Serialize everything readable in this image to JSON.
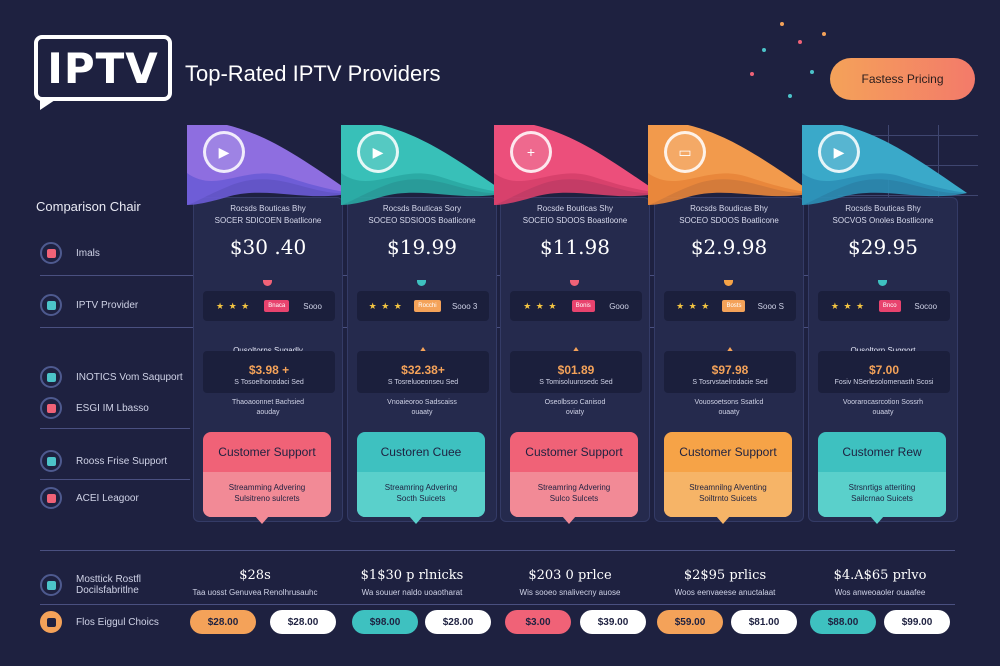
{
  "header": {
    "logo_text": "IPTV",
    "title": "Top-Rated IPTV Providers",
    "pill": "Fastess Pricing"
  },
  "side": {
    "title": "Comparison Chair",
    "rows": [
      {
        "label": "Imals",
        "icon": "tv-icon",
        "color": "#f06277"
      },
      {
        "label": "IPTV Provider",
        "icon": "monitor-icon",
        "color": "#4cc3c9"
      },
      {
        "label": "INOTICS Vom Saquport",
        "icon": "list-icon",
        "color": "#4cc3c9"
      },
      {
        "label": "ESGI IM Lbasso",
        "icon": "grid-icon",
        "color": "#f06277"
      },
      {
        "label": "Rooss Frise Support",
        "icon": "chat-icon",
        "color": "#4cc3c9"
      },
      {
        "label": "ACEI Leagoor",
        "icon": "user-icon",
        "color": "#f06277"
      },
      {
        "label": "Mosttick Rostfl Docilsfabritlne",
        "icon": "chart-icon",
        "color": "#4cc3c9"
      },
      {
        "label": "Flos Eiggul Choics",
        "icon": "badge-icon",
        "color": "#f4a259"
      }
    ]
  },
  "providers": [
    {
      "color": "#8e6ee0",
      "color2": "#6a5bd6",
      "icon": "play-icon",
      "glyph": "▶",
      "desc1": "Rocsds Bouticas Bhy",
      "desc2": "SOCER SDICOEN Boatlicone",
      "price": "$30 .40",
      "tag": "Bnaca",
      "tag_color": "#e8436e",
      "score": "Sooo",
      "support_head": "Ousoltorns Sugadly",
      "box_price": "$3.98 +",
      "box_sub": "S Tosoelhonodaci Sed",
      "pdesc1": "Thaoaoonnet Bachsied",
      "pdesc2": "aouday",
      "card_title": "Customer Support",
      "card_top": "#f06277",
      "card_bot": "#f28a96",
      "card_desc1": "Streamming Advering",
      "card_desc2": "Sulsitreno sulcrets",
      "bottom_price": "$28s",
      "bottom_desc": "Taa uosst Genuvea Renolhrusauhc",
      "btn1": "$28.00",
      "btn1_color": "#f4a259",
      "btn2": "$28.00"
    },
    {
      "color": "#38c0b8",
      "color2": "#2aa9a3",
      "icon": "play-icon",
      "glyph": "▶",
      "desc1": "Rocsds Bouticas Sory",
      "desc2": "SOCEO SDSIOOS Boatlicone",
      "price": "$19.99",
      "tag": "Rocchi",
      "tag_color": "#f4a259",
      "score": "Sooo 3",
      "support_head": "",
      "box_price": "$32.38+",
      "box_sub": "S Tosreluoeonseu Sed",
      "pdesc1": "Vnoaieoroo Sadscaiss",
      "pdesc2": "ouaaty",
      "card_title": "Custoren Cuee",
      "card_top": "#3ec1c0",
      "card_bot": "#5ad0cb",
      "card_desc1": "Streamring Advering",
      "card_desc2": "Socth Suicets",
      "bottom_price": "$1$30 p rlnicks",
      "bottom_desc": "Wa souuer naldo uoaotharat",
      "btn1": "$98.00",
      "btn1_color": "#3ec1c0",
      "btn2": "$28.00"
    },
    {
      "color": "#ec4f7b",
      "color2": "#d63f6a",
      "icon": "plus-icon",
      "glyph": "+",
      "desc1": "Rocsde Bouticas Shy",
      "desc2": "SOCEIO SDOOS Boastloone",
      "price": "$11.98",
      "tag": "Bonis",
      "tag_color": "#e8436e",
      "score": "Gooo",
      "support_head": "",
      "box_price": "$01.89",
      "box_sub": "S Tomisoluurosedc Sed",
      "pdesc1": "Oseolbsso Canisod",
      "pdesc2": "oviaty",
      "card_title": "Customer Support",
      "card_top": "#f06277",
      "card_bot": "#f28a96",
      "card_desc1": "Streamring Advering",
      "card_desc2": "Sulco Sulcets",
      "bottom_price": "$203 0 prlce",
      "bottom_desc": "Wis sooeo snalivecny auose",
      "btn1": "$3.00",
      "btn1_color": "#f06277",
      "btn2": "$39.00"
    },
    {
      "color": "#f29a4c",
      "color2": "#e8853a",
      "icon": "card-icon",
      "glyph": "▭",
      "desc1": "Rocsds Boudicas Bhy",
      "desc2": "SOCEO SDOOS Boatlicone",
      "price": "$2.9.98",
      "tag": "Bosts",
      "tag_color": "#f4a259",
      "score": "Sooo S",
      "support_head": "",
      "box_price": "$97.98",
      "box_sub": "S Tosrvstaelrodacie Sed",
      "pdesc1": "Vouosoetsons Ssatlcd",
      "pdesc2": "ouaaty",
      "card_title": "Customer Support",
      "card_top": "#f6a347",
      "card_bot": "#f6b467",
      "card_desc1": "Streamnilng Alventing",
      "card_desc2": "Soiltrnto Suicets",
      "bottom_price": "$2$95 prlics",
      "bottom_desc": "Woos eenvaeese anuctalaat",
      "btn1": "$59.00",
      "btn1_color": "#f4a259",
      "btn2": "$81.00"
    },
    {
      "color": "#3aa9c9",
      "color2": "#2c8fb6",
      "icon": "play-icon",
      "glyph": "▶",
      "desc1": "Rocsds Bouticas Bhy",
      "desc2": "SOCVOS Onoles Bostlicone",
      "price": "$29.95",
      "tag": "Bnco",
      "tag_color": "#e8436e",
      "score": "Socoo",
      "support_head": "Ousoltorn Suggort",
      "box_price": "$7.00",
      "box_sub": "Fosiv NSerlesolomenasth Scosi",
      "pdesc1": "Voorarocasrcotion Sossrh",
      "pdesc2": "ouaaty",
      "card_title": "Customer Rew",
      "card_top": "#3ec1c0",
      "card_bot": "#5ad0cb",
      "card_desc1": "Strsnrtigs atteriting",
      "card_desc2": "Sailcrnao Suicets",
      "bottom_price": "$4.A$65 prlvo",
      "bottom_desc": "Wos anweoaoler ouaafee",
      "btn1": "$88.00",
      "btn1_color": "#3ec1c0",
      "btn2": "$99.00"
    }
  ]
}
